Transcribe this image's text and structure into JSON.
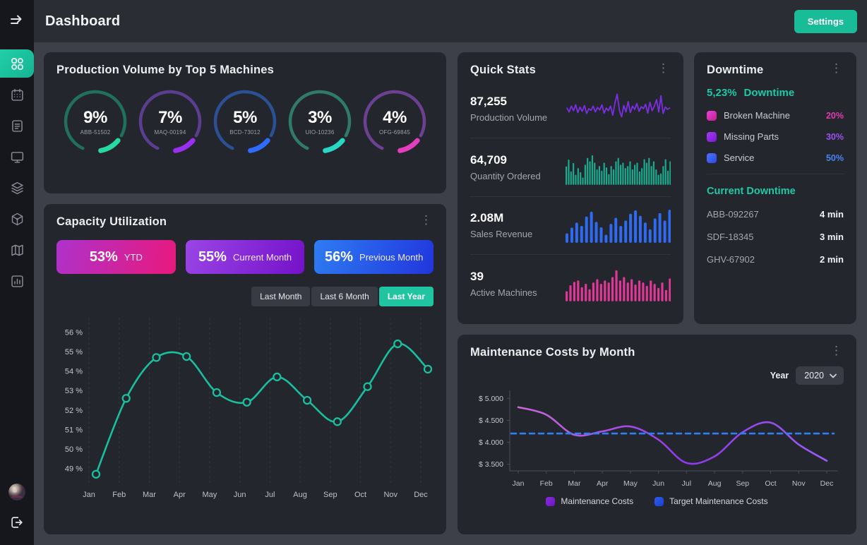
{
  "header": {
    "title": "Dashboard",
    "settings_label": "Settings"
  },
  "sidebar": {
    "icons": [
      "menu-toggle",
      "dashboard",
      "calendar",
      "report",
      "monitor",
      "layers",
      "cube",
      "map",
      "bar-chart",
      "avatar",
      "logout"
    ],
    "active_item": "dashboard",
    "accent_color": "#1fcca6"
  },
  "production": {
    "title": "Production Volume by Top 5 Machines",
    "gauges": [
      {
        "pct": "9%",
        "machine": "ABB-51502",
        "ring": "#20705f",
        "accent": "#27d8a0"
      },
      {
        "pct": "7%",
        "machine": "MAQ-00194",
        "ring": "#5c3d90",
        "accent": "#9a2ff0"
      },
      {
        "pct": "5%",
        "machine": "BCD-73012",
        "ring": "#2b5094",
        "accent": "#2e6bff"
      },
      {
        "pct": "3%",
        "machine": "UIO-10236",
        "ring": "#2f7a6a",
        "accent": "#27d8c2"
      },
      {
        "pct": "4%",
        "machine": "OFG-69845",
        "ring": "#6d4192",
        "accent": "#e23ec0"
      }
    ]
  },
  "capacity": {
    "title": "Capacity Utilization",
    "stats": [
      {
        "value": "53%",
        "label": "YTD",
        "g1": "#ad32cc",
        "g2": "#ea187b"
      },
      {
        "value": "55%",
        "label": "Current Month",
        "g1": "#9a45e6",
        "g2": "#7411c9"
      },
      {
        "value": "56%",
        "label": "Previous Month",
        "g1": "#2e7df2",
        "g2": "#2135dd"
      }
    ],
    "tabs": [
      {
        "label": "Last Month",
        "active": false
      },
      {
        "label": "Last 6 Month",
        "active": false
      },
      {
        "label": "Last Year",
        "active": true
      }
    ]
  },
  "quick_stats": {
    "title": "Quick Stats",
    "items": [
      {
        "value": "87,255",
        "label": "Production Volume",
        "spark_type": "line",
        "spark_color": "#7c2ee6",
        "values": [
          52,
          40,
          58,
          44,
          62,
          38,
          55,
          42,
          60,
          35,
          50,
          45,
          58,
          40,
          54,
          46,
          62,
          36,
          52,
          44,
          58,
          30,
          68,
          95,
          45,
          25,
          60,
          40,
          72,
          38,
          58,
          48,
          66,
          42,
          56,
          50,
          64,
          36,
          70,
          44,
          58,
          78,
          40,
          90,
          35,
          55,
          48,
          52
        ]
      },
      {
        "value": "64,709",
        "label": "Quantity Ordered",
        "spark_type": "bars",
        "spark_color": "#19ab8e",
        "values": [
          55,
          75,
          40,
          65,
          30,
          50,
          38,
          22,
          60,
          80,
          70,
          88,
          66,
          46,
          56,
          42,
          66,
          52,
          32,
          56,
          46,
          70,
          80,
          60,
          66,
          50,
          56,
          70,
          46,
          60,
          66,
          40,
          50,
          76,
          66,
          80,
          56,
          70,
          46,
          30,
          34,
          56,
          76,
          42,
          70
        ]
      },
      {
        "value": "2.08M",
        "label": "Sales Revenue",
        "spark_type": "bars",
        "spark_color": "#2e6bf0",
        "values": [
          28,
          45,
          60,
          50,
          78,
          92,
          62,
          46,
          24,
          56,
          74,
          50,
          66,
          86,
          96,
          80,
          60,
          40,
          72,
          88,
          66,
          98
        ]
      },
      {
        "value": "39",
        "label": "Active Machines",
        "spark_type": "bars",
        "spark_color": "#e03897",
        "values": [
          30,
          48,
          58,
          62,
          42,
          52,
          36,
          56,
          66,
          52,
          62,
          56,
          72,
          92,
          62,
          72,
          56,
          66,
          50,
          62,
          56,
          46,
          62,
          52,
          40,
          56,
          34,
          68
        ]
      }
    ]
  },
  "downtime": {
    "title": "Downtime",
    "headline_value": "5,23%",
    "headline_label": "Downtime",
    "legend": [
      {
        "label": "Broken Machine",
        "pct": "20%",
        "color": "#e743d9",
        "color2": "#c01f90",
        "pct_color": "#e23bb0"
      },
      {
        "label": "Missing Parts",
        "pct": "30%",
        "color": "#a43cf0",
        "color2": "#7a18d8",
        "pct_color": "#9b52f0"
      },
      {
        "label": "Service",
        "pct": "50%",
        "color": "#4f74f8",
        "color2": "#2a49e8",
        "pct_color": "#4b82f5"
      }
    ],
    "current_title": "Current Downtime",
    "current": [
      {
        "machine": "ABB-092267",
        "time": "4 min"
      },
      {
        "machine": "SDF-18345",
        "time": "3 min"
      },
      {
        "machine": "GHV-67902",
        "time": "2 min"
      }
    ]
  },
  "maintenance": {
    "title": "Maintenance Costs by Month",
    "year_label": "Year",
    "year_value": "2020",
    "legend": [
      {
        "label": "Maintenance Costs",
        "color": "#8a2be2",
        "color2": "#6a14c4"
      },
      {
        "label": "Target Maintenance Costs",
        "color": "#2a5df0",
        "color2": "#1b3fd0"
      }
    ]
  },
  "chart_data": [
    {
      "type": "line",
      "title": "Capacity Utilization - Last Year",
      "categories": [
        "Jan",
        "Feb",
        "Mar",
        "Apr",
        "May",
        "Jun",
        "Jul",
        "Aug",
        "Sep",
        "Oct",
        "Nov",
        "Dec"
      ],
      "values": [
        48.7,
        52.6,
        54.7,
        54.75,
        52.9,
        52.4,
        53.7,
        52.5,
        51.4,
        53.2,
        55.4,
        54.1
      ],
      "yticks": [
        49,
        50,
        51,
        52,
        53,
        54,
        55,
        56
      ],
      "ytick_suffix": " %",
      "ylim": [
        48.4,
        56.6
      ],
      "line_color": "#19bf9e",
      "grid": "vertical-dashed",
      "markers": true,
      "legend_position": "none"
    },
    {
      "type": "line",
      "title": "Maintenance Costs by Month - 2020",
      "categories": [
        "Jan",
        "Feb",
        "Mar",
        "Apr",
        "May",
        "Jun",
        "Jul",
        "Aug",
        "Sep",
        "Oct",
        "Nov",
        "Dec"
      ],
      "series": [
        {
          "name": "Maintenance Costs",
          "values": [
            4800,
            4630,
            4170,
            4250,
            4360,
            4060,
            3530,
            3680,
            4230,
            4450,
            3950,
            3580
          ],
          "style": "solid",
          "color": "#9340ea"
        },
        {
          "name": "Target Maintenance Costs",
          "values": [
            4200,
            4200,
            4200,
            4200,
            4200,
            4200,
            4200,
            4200,
            4200,
            4200,
            4200,
            4200
          ],
          "style": "dashed",
          "color": "#2e7ef5"
        }
      ],
      "yticks": [
        5000,
        4500,
        4000,
        3500
      ],
      "ytick_labels": [
        "$ 5.000",
        "$ 4.500",
        "$ 4.000",
        "$ 3.500"
      ],
      "ylim": [
        3350,
        5150
      ],
      "grid": "none",
      "axis": true,
      "legend_position": "bottom"
    }
  ]
}
